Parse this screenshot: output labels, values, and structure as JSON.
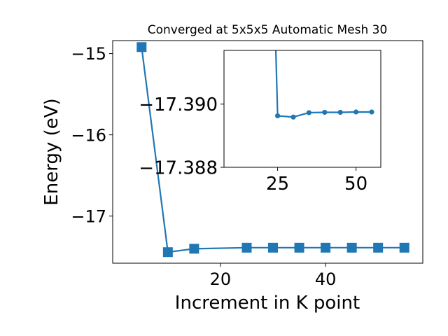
{
  "chart_data": [
    {
      "type": "line",
      "title": "Converged at 5x5x5 Automatic Mesh 30",
      "xlabel": "Increment in K point",
      "ylabel": "Energy (eV)",
      "x": [
        5,
        10,
        15,
        25,
        30,
        35,
        40,
        45,
        50,
        55
      ],
      "series": [
        {
          "values": [
            -14.92,
            -17.444,
            -17.402,
            -17.389,
            -17.389,
            -17.389,
            -17.389,
            -17.389,
            -17.389,
            -17.389
          ],
          "color": "#1f77b4",
          "marker": "square"
        }
      ],
      "xlim": [
        -0.5,
        58.5
      ],
      "ylim": [
        -17.58,
        -14.84
      ],
      "xticks": [
        20,
        40
      ],
      "xtick_labels": [
        "20",
        "40"
      ],
      "yticks": [
        -15,
        -16,
        -17
      ],
      "ytick_labels": [
        "−15",
        "−16",
        "−17"
      ],
      "grid": false
    },
    {
      "type": "line",
      "subtype": "inset",
      "x": [
        25,
        30,
        35,
        40,
        45,
        50,
        55
      ],
      "series": [
        {
          "values": [
            -17.38963,
            -17.38959,
            -17.38973,
            -17.38974,
            -17.38974,
            -17.38975,
            -17.38975
          ],
          "color": "#1f77b4",
          "marker": "circle"
        }
      ],
      "xlim": [
        7.9,
        57.9
      ],
      "ylim": [
        -17.388,
        -17.3917
      ],
      "xticks": [
        25,
        50
      ],
      "xtick_labels": [
        "25",
        "50"
      ],
      "yticks": [
        -17.39,
        -17.388
      ],
      "ytick_labels": [
        "−17.390",
        "−17.388"
      ],
      "grid": false
    }
  ]
}
